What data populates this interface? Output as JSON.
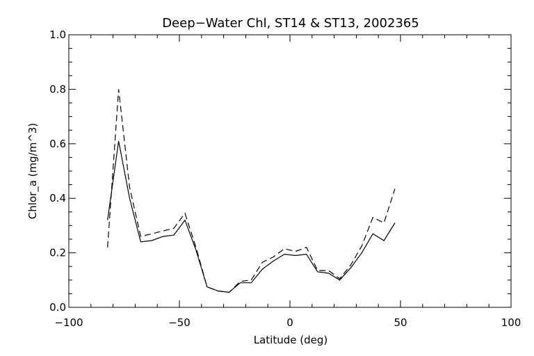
{
  "chart_data": {
    "type": "line",
    "title": "Deep−Water Chl, ST14 & ST13, 2002365",
    "xlabel": "Latitude (deg)",
    "ylabel": "Chlor_a (mg/m^3)",
    "xlim": [
      -100,
      100
    ],
    "ylim": [
      0.0,
      1.0
    ],
    "x_ticks": [
      -100,
      -50,
      0,
      50,
      100
    ],
    "x_tick_labels": [
      "−100",
      "−50",
      "0",
      "50",
      "100"
    ],
    "y_ticks": [
      0.0,
      0.2,
      0.4,
      0.6,
      0.8,
      1.0
    ],
    "y_tick_labels": [
      "0.0",
      "0.2",
      "0.4",
      "0.6",
      "0.8",
      "1.0"
    ],
    "grid": false,
    "series": [
      {
        "style": "solid",
        "x": [
          -82.5,
          -77.5,
          -72.5,
          -67.5,
          -62.5,
          -57.5,
          -52.5,
          -47.5,
          -42.5,
          -37.5,
          -32.5,
          -27.5,
          -22.5,
          -17.5,
          -12.5,
          -7.5,
          -2.5,
          2.5,
          7.5,
          12.5,
          17.5,
          22.5,
          27.5,
          32.5,
          37.5,
          42.5,
          47.5
        ],
        "y": [
          0.32,
          0.61,
          0.4,
          0.24,
          0.245,
          0.26,
          0.265,
          0.32,
          0.21,
          0.075,
          0.06,
          0.055,
          0.09,
          0.09,
          0.14,
          0.17,
          0.195,
          0.19,
          0.195,
          0.13,
          0.125,
          0.1,
          0.145,
          0.2,
          0.27,
          0.245,
          0.31
        ]
      },
      {
        "style": "dashed",
        "x": [
          -82.5,
          -77.5,
          -72.5,
          -67.5,
          -62.5,
          -57.5,
          -52.5,
          -47.5,
          -42.5,
          -37.5,
          -32.5,
          -27.5,
          -22.5,
          -17.5,
          -12.5,
          -7.5,
          -2.5,
          2.5,
          7.5,
          12.5,
          17.5,
          22.5,
          27.5,
          32.5,
          37.5,
          42.5,
          47.5
        ],
        "y": [
          0.22,
          0.8,
          0.44,
          0.26,
          0.27,
          0.28,
          0.29,
          0.345,
          0.22,
          0.075,
          0.06,
          0.055,
          0.095,
          0.1,
          0.165,
          0.185,
          0.215,
          0.205,
          0.22,
          0.135,
          0.135,
          0.105,
          0.155,
          0.225,
          0.33,
          0.31,
          0.435
        ]
      }
    ]
  }
}
